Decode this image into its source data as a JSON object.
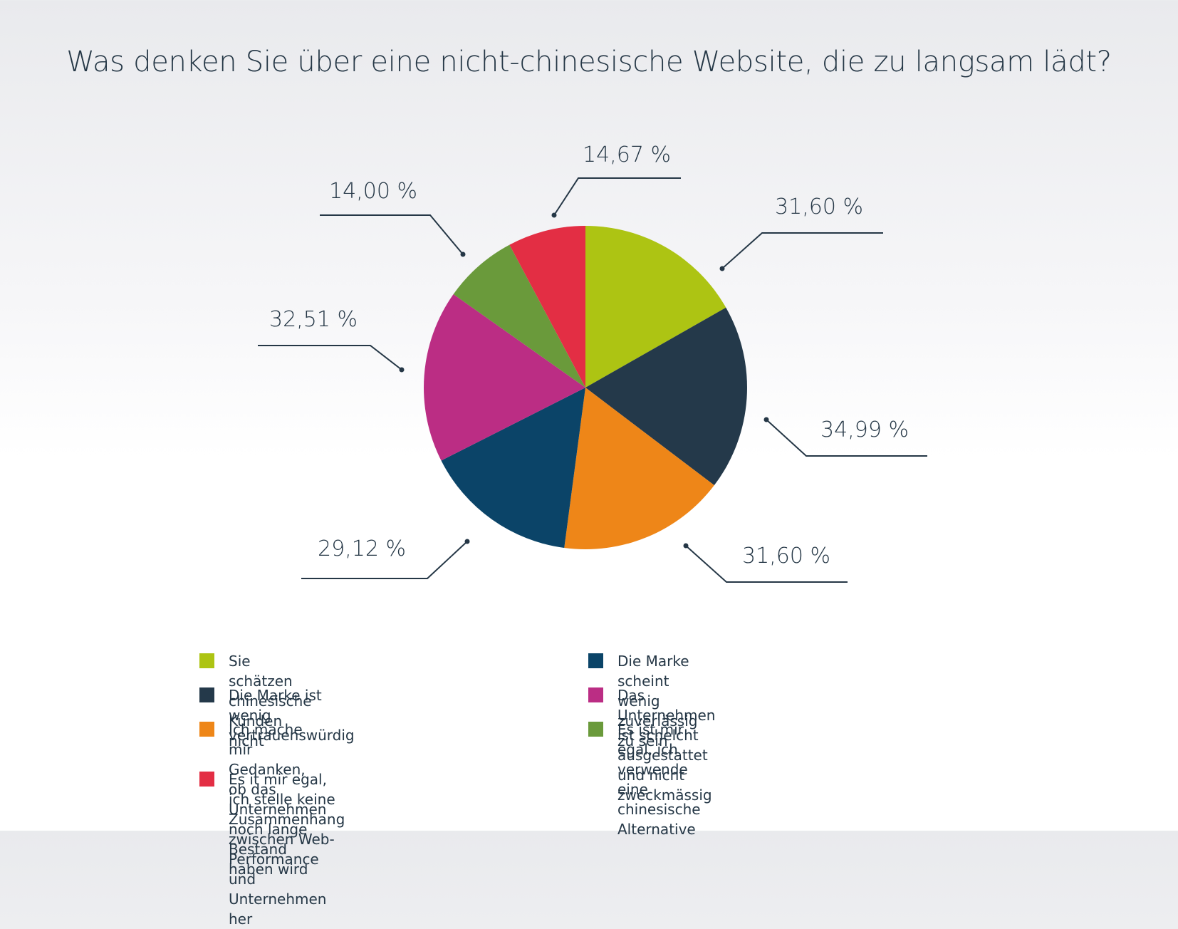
{
  "chart_data": {
    "type": "pie",
    "title": "Was denken Sie über eine nicht-chinesische Website, die zu langsam lädt?",
    "slices": [
      {
        "name": "Sie schätzen chinesische Kunden nicht",
        "value": 31.6,
        "label": "31,60 %",
        "color": "#adc413"
      },
      {
        "name": "Die Marke ist wenig vertrauenswürdig",
        "value": 34.99,
        "label": "34,99 %",
        "color": "#24394a"
      },
      {
        "name": "Ich mache mir Gedanken, ob das Unternehmen noch lange Bestand haben wird",
        "value": 31.6,
        "label": "31,60 %",
        "color": "#ee8618"
      },
      {
        "name": "Die Marke scheint wenig zuverlässig zu sein",
        "value": 29.12,
        "label": "29,12 %",
        "color": "#0b4468"
      },
      {
        "name": "Das Unternehmen ist schelcht ausgestattet und nicht zweckmässig",
        "value": 32.51,
        "label": "32,51 %",
        "color": "#bb2d84"
      },
      {
        "name": "Es ist mir egal, ich verwende eine chinesische Alternative",
        "value": 14.0,
        "label": "14,00 %",
        "color": "#6a9a3b"
      },
      {
        "name": "Es it mir egal, ich stelle keine Zusammenhang zwischen Web-Performance und Unternehmen her",
        "value": 14.67,
        "label": "14,67 %",
        "color": "#e32e44"
      }
    ]
  },
  "legend": {
    "items": [
      {
        "label": "Sie schätzen chinesische Kunden nicht",
        "color": "#adc413"
      },
      {
        "label": "Die Marke ist wenig vertrauenswürdig",
        "color": "#24394a"
      },
      {
        "label_line1": "Ich mache mir Gedanken, ob das Unternehmen",
        "label_line2": "noch lange Bestand haben wird",
        "color": "#ee8618"
      },
      {
        "label": "Es it mir egal, ich stelle keine Zusammenhang zwischen Web-Performance und Unternehmen her",
        "color": "#e32e44"
      },
      {
        "label": "Die Marke scheint wenig zuverlässig zu sein",
        "color": "#0b4468"
      },
      {
        "label": "Das Unternehmen ist schelcht ausgestattet und nicht zweckmässig",
        "color": "#bb2d84"
      },
      {
        "label": "Es ist mir egal, ich verwende eine chinesische Alternative",
        "color": "#6a9a3b"
      }
    ]
  }
}
